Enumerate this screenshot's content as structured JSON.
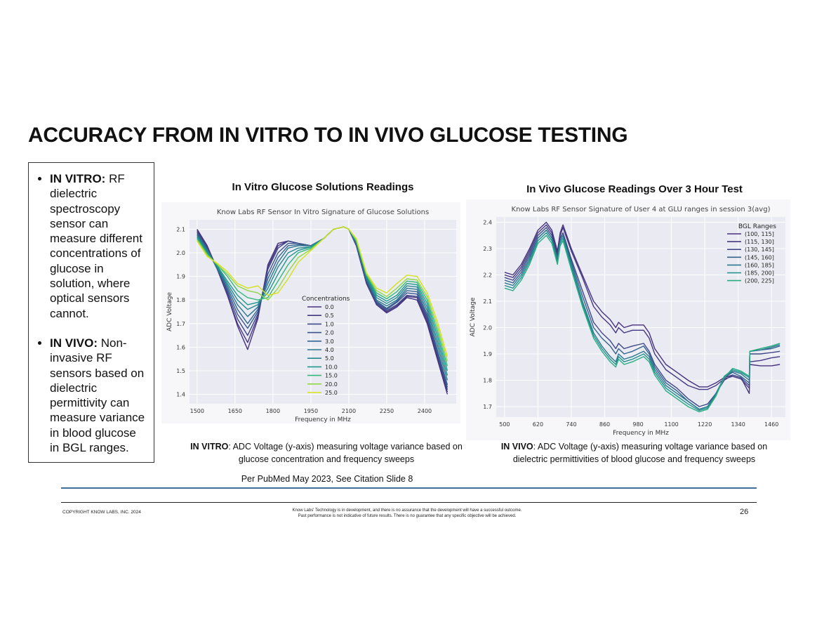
{
  "slide": {
    "title": "ACCURACY FROM IN VITRO TO IN VIVO GLUCOSE TESTING",
    "bullets": [
      {
        "label": "IN VITRO:",
        "text": " RF dielectric spectroscopy sensor can measure different concentrations of glucose in solution, where optical sensors cannot."
      },
      {
        "label": "IN VIVO:",
        "text": " Non-invasive RF sensors based on dielectric permittivity can measure variance in blood glucose in BGL ranges."
      }
    ],
    "left_heading": "In Vitro Glucose Solutions Readings",
    "right_heading": "In Vivo Glucose Readings Over 3 Hour Test",
    "left_caption_label": "IN VITRO",
    "left_caption_text": ": ADC Voltage (y-axis) measuring voltage variance  based on glucose concentration and frequency sweeps",
    "right_caption_label": "IN VIVO",
    "right_caption_text": ": ADC Voltage (y-axis) measuring voltage variance based on dielectric permittivities of blood glucose and frequency sweeps",
    "citation": "Per PubMed May 2023, See Citation Slide 8",
    "footer": {
      "copyright": "COPYRIGHT KNOW LABS, INC.  2024",
      "disclaimer_line1": "Know Labs' Technology is in development, and there is no assurance that the development will have a successful outcome.",
      "disclaimer_line2": "Past performance is not indicative of future results. There is no guarantee that any specific objective will be achieved.",
      "page_number": "26"
    }
  },
  "chart_data": [
    {
      "type": "line",
      "title": "Know Labs RF Sensor In Vitro Signature of Glucose Solutions",
      "xlabel": "Frequency in MHz",
      "ylabel": "ADC Voltage",
      "xlim": [
        1470,
        2525
      ],
      "ylim": [
        1.36,
        2.14
      ],
      "x_ticks": [
        1500,
        1650,
        1800,
        1950,
        2100,
        2250,
        2400
      ],
      "y_ticks": [
        1.4,
        1.5,
        1.6,
        1.7,
        1.8,
        1.9,
        2.0,
        2.1
      ],
      "legend_title": "Concentrations",
      "legend_position": "center",
      "grid": true,
      "base_x": [
        1500,
        1540,
        1580,
        1620,
        1660,
        1700,
        1740,
        1780,
        1820,
        1860,
        1900,
        1950,
        2000,
        2040,
        2080,
        2100,
        2130,
        2170,
        2210,
        2250,
        2290,
        2330,
        2370,
        2410,
        2450,
        2490
      ],
      "series": [
        {
          "name": "0.0",
          "color": "#46327e",
          "values": [
            2.1,
            2.03,
            1.93,
            1.82,
            1.69,
            1.59,
            1.72,
            1.95,
            2.04,
            2.05,
            2.04,
            2.03,
            2.06,
            2.1,
            2.11,
            2.1,
            2.03,
            1.87,
            1.78,
            1.745,
            1.77,
            1.81,
            1.8,
            1.7,
            1.55,
            1.4
          ]
        },
        {
          "name": "0.5",
          "color": "#453781",
          "values": [
            2.095,
            2.025,
            1.93,
            1.82,
            1.7,
            1.62,
            1.73,
            1.94,
            2.03,
            2.05,
            2.04,
            2.03,
            2.06,
            2.1,
            2.11,
            2.1,
            2.03,
            1.87,
            1.78,
            1.75,
            1.775,
            1.815,
            1.81,
            1.71,
            1.56,
            1.41
          ]
        },
        {
          "name": "1.0",
          "color": "#3f4788",
          "values": [
            2.09,
            2.02,
            1.93,
            1.83,
            1.72,
            1.65,
            1.74,
            1.93,
            2.02,
            2.05,
            2.04,
            2.03,
            2.06,
            2.1,
            2.11,
            2.1,
            2.035,
            1.875,
            1.785,
            1.755,
            1.78,
            1.82,
            1.815,
            1.72,
            1.57,
            1.42
          ]
        },
        {
          "name": "2.0",
          "color": "#39558c",
          "values": [
            2.085,
            2.02,
            1.93,
            1.84,
            1.74,
            1.68,
            1.75,
            1.91,
            2.0,
            2.04,
            2.04,
            2.03,
            2.06,
            2.1,
            2.11,
            2.1,
            2.035,
            1.88,
            1.79,
            1.76,
            1.79,
            1.83,
            1.825,
            1.73,
            1.58,
            1.43
          ]
        },
        {
          "name": "3.0",
          "color": "#32648e",
          "values": [
            2.08,
            2.015,
            1.93,
            1.85,
            1.76,
            1.7,
            1.76,
            1.89,
            1.98,
            2.03,
            2.035,
            2.03,
            2.06,
            2.1,
            2.11,
            2.1,
            2.04,
            1.885,
            1.795,
            1.765,
            1.795,
            1.84,
            1.835,
            1.74,
            1.59,
            1.44
          ]
        },
        {
          "name": "4.0",
          "color": "#2a778e",
          "values": [
            2.075,
            2.01,
            1.935,
            1.86,
            1.78,
            1.73,
            1.77,
            1.87,
            1.96,
            2.02,
            2.03,
            2.03,
            2.06,
            2.1,
            2.11,
            2.1,
            2.04,
            1.89,
            1.8,
            1.775,
            1.8,
            1.85,
            1.845,
            1.755,
            1.61,
            1.46
          ]
        },
        {
          "name": "5.0",
          "color": "#23888e",
          "values": [
            2.07,
            2.005,
            1.94,
            1.87,
            1.8,
            1.76,
            1.78,
            1.85,
            1.94,
            2.0,
            2.02,
            2.025,
            2.06,
            2.1,
            2.11,
            2.1,
            2.045,
            1.895,
            1.81,
            1.785,
            1.81,
            1.86,
            1.855,
            1.77,
            1.63,
            1.48
          ]
        },
        {
          "name": "10.0",
          "color": "#1f988b",
          "values": [
            2.065,
            2.0,
            1.945,
            1.88,
            1.82,
            1.78,
            1.79,
            1.83,
            1.91,
            1.98,
            2.01,
            2.025,
            2.06,
            2.1,
            2.11,
            2.1,
            2.05,
            1.9,
            1.82,
            1.795,
            1.82,
            1.87,
            1.865,
            1.785,
            1.65,
            1.5
          ]
        },
        {
          "name": "15.0",
          "color": "#35b779",
          "values": [
            2.06,
            1.995,
            1.95,
            1.9,
            1.84,
            1.81,
            1.8,
            1.81,
            1.88,
            1.95,
            2.0,
            2.02,
            2.06,
            2.1,
            2.11,
            2.1,
            2.05,
            1.905,
            1.83,
            1.805,
            1.835,
            1.88,
            1.875,
            1.8,
            1.67,
            1.52
          ]
        },
        {
          "name": "20.0",
          "color": "#8fd744",
          "values": [
            2.055,
            1.99,
            1.95,
            1.91,
            1.86,
            1.84,
            1.83,
            1.8,
            1.85,
            1.92,
            1.98,
            2.015,
            2.06,
            2.1,
            2.11,
            2.1,
            2.055,
            1.91,
            1.84,
            1.815,
            1.85,
            1.89,
            1.885,
            1.815,
            1.69,
            1.54
          ]
        },
        {
          "name": "25.0",
          "color": "#d4e21a",
          "values": [
            2.05,
            1.985,
            1.955,
            1.92,
            1.87,
            1.85,
            1.86,
            1.82,
            1.83,
            1.89,
            1.96,
            2.01,
            2.06,
            2.1,
            2.11,
            2.1,
            2.06,
            1.915,
            1.85,
            1.83,
            1.87,
            1.905,
            1.9,
            1.83,
            1.71,
            1.56
          ]
        }
      ]
    },
    {
      "type": "line",
      "title": "Know Labs RF Sensor Signature of User 4 at GLU ranges in session 3(avg)",
      "xlabel": "Frequency in MHz",
      "ylabel": "ADC Voltage",
      "xlim": [
        470,
        1510
      ],
      "ylim": [
        1.66,
        2.42
      ],
      "x_ticks": [
        500,
        620,
        740,
        860,
        980,
        1100,
        1220,
        1340,
        1460
      ],
      "y_ticks": [
        1.7,
        1.8,
        1.9,
        2.0,
        2.1,
        2.2,
        2.3,
        2.4
      ],
      "legend_title": "BGL Ranges",
      "legend_position": "top-right",
      "grid": true,
      "base_x": [
        500,
        530,
        560,
        590,
        620,
        650,
        670,
        690,
        700,
        710,
        740,
        780,
        820,
        850,
        880,
        900,
        910,
        930,
        960,
        1000,
        1020,
        1040,
        1080,
        1120,
        1160,
        1200,
        1230,
        1260,
        1290,
        1320,
        1350,
        1380,
        1382,
        1420,
        1460,
        1490
      ],
      "series": [
        {
          "name": "(100, 115]",
          "color": "#46327e",
          "values": [
            2.21,
            2.2,
            2.24,
            2.3,
            2.37,
            2.4,
            2.37,
            2.29,
            2.36,
            2.39,
            2.3,
            2.2,
            2.1,
            2.06,
            2.03,
            2.0,
            2.02,
            2.0,
            2.01,
            2.01,
            1.98,
            1.92,
            1.86,
            1.83,
            1.8,
            1.775,
            1.775,
            1.79,
            1.81,
            1.82,
            1.81,
            1.75,
            1.86,
            1.855,
            1.855,
            1.86
          ]
        },
        {
          "name": "(115, 130]",
          "color": "#453781",
          "values": [
            2.2,
            2.19,
            2.23,
            2.29,
            2.36,
            2.39,
            2.36,
            2.28,
            2.35,
            2.38,
            2.29,
            2.19,
            2.08,
            2.04,
            2.01,
            1.98,
            2.0,
            1.98,
            1.99,
            1.99,
            1.96,
            1.9,
            1.84,
            1.81,
            1.78,
            1.765,
            1.765,
            1.78,
            1.805,
            1.815,
            1.805,
            1.77,
            1.87,
            1.875,
            1.885,
            1.89
          ]
        },
        {
          "name": "(130, 145]",
          "color": "#3f4788",
          "values": [
            2.19,
            2.18,
            2.22,
            2.28,
            2.35,
            2.38,
            2.35,
            2.27,
            2.34,
            2.36,
            2.26,
            2.14,
            2.02,
            1.98,
            1.95,
            1.92,
            1.94,
            1.92,
            1.93,
            1.94,
            1.91,
            1.86,
            1.8,
            1.77,
            1.73,
            1.7,
            1.71,
            1.75,
            1.8,
            1.82,
            1.81,
            1.78,
            1.9,
            1.9,
            1.905,
            1.91
          ]
        },
        {
          "name": "(145, 160]",
          "color": "#33638d",
          "values": [
            2.18,
            2.17,
            2.21,
            2.27,
            2.34,
            2.37,
            2.34,
            2.26,
            2.33,
            2.35,
            2.25,
            2.12,
            2.0,
            1.96,
            1.93,
            1.9,
            1.92,
            1.9,
            1.91,
            1.93,
            1.9,
            1.85,
            1.79,
            1.76,
            1.72,
            1.69,
            1.7,
            1.75,
            1.81,
            1.83,
            1.815,
            1.79,
            1.91,
            1.915,
            1.92,
            1.93
          ]
        },
        {
          "name": "(160, 185]",
          "color": "#2a788e",
          "values": [
            2.17,
            2.16,
            2.2,
            2.26,
            2.34,
            2.37,
            2.34,
            2.26,
            2.33,
            2.35,
            2.24,
            2.1,
            1.98,
            1.93,
            1.89,
            1.87,
            1.9,
            1.88,
            1.89,
            1.91,
            1.89,
            1.84,
            1.78,
            1.75,
            1.72,
            1.69,
            1.7,
            1.75,
            1.81,
            1.835,
            1.825,
            1.8,
            1.91,
            1.915,
            1.925,
            1.935
          ]
        },
        {
          "name": "(185, 200]",
          "color": "#21918c",
          "values": [
            2.16,
            2.15,
            2.19,
            2.25,
            2.33,
            2.36,
            2.33,
            2.25,
            2.32,
            2.34,
            2.23,
            2.09,
            1.97,
            1.92,
            1.88,
            1.86,
            1.89,
            1.87,
            1.88,
            1.9,
            1.88,
            1.83,
            1.77,
            1.74,
            1.71,
            1.685,
            1.695,
            1.745,
            1.815,
            1.84,
            1.83,
            1.81,
            1.91,
            1.92,
            1.93,
            1.94
          ]
        },
        {
          "name": "(200, 225]",
          "color": "#27ad81",
          "values": [
            2.15,
            2.14,
            2.18,
            2.24,
            2.32,
            2.35,
            2.32,
            2.24,
            2.31,
            2.33,
            2.22,
            2.08,
            1.96,
            1.91,
            1.87,
            1.85,
            1.88,
            1.86,
            1.87,
            1.89,
            1.87,
            1.82,
            1.76,
            1.73,
            1.7,
            1.68,
            1.69,
            1.74,
            1.81,
            1.845,
            1.835,
            1.815,
            1.91,
            1.92,
            1.93,
            1.94
          ]
        }
      ]
    }
  ]
}
